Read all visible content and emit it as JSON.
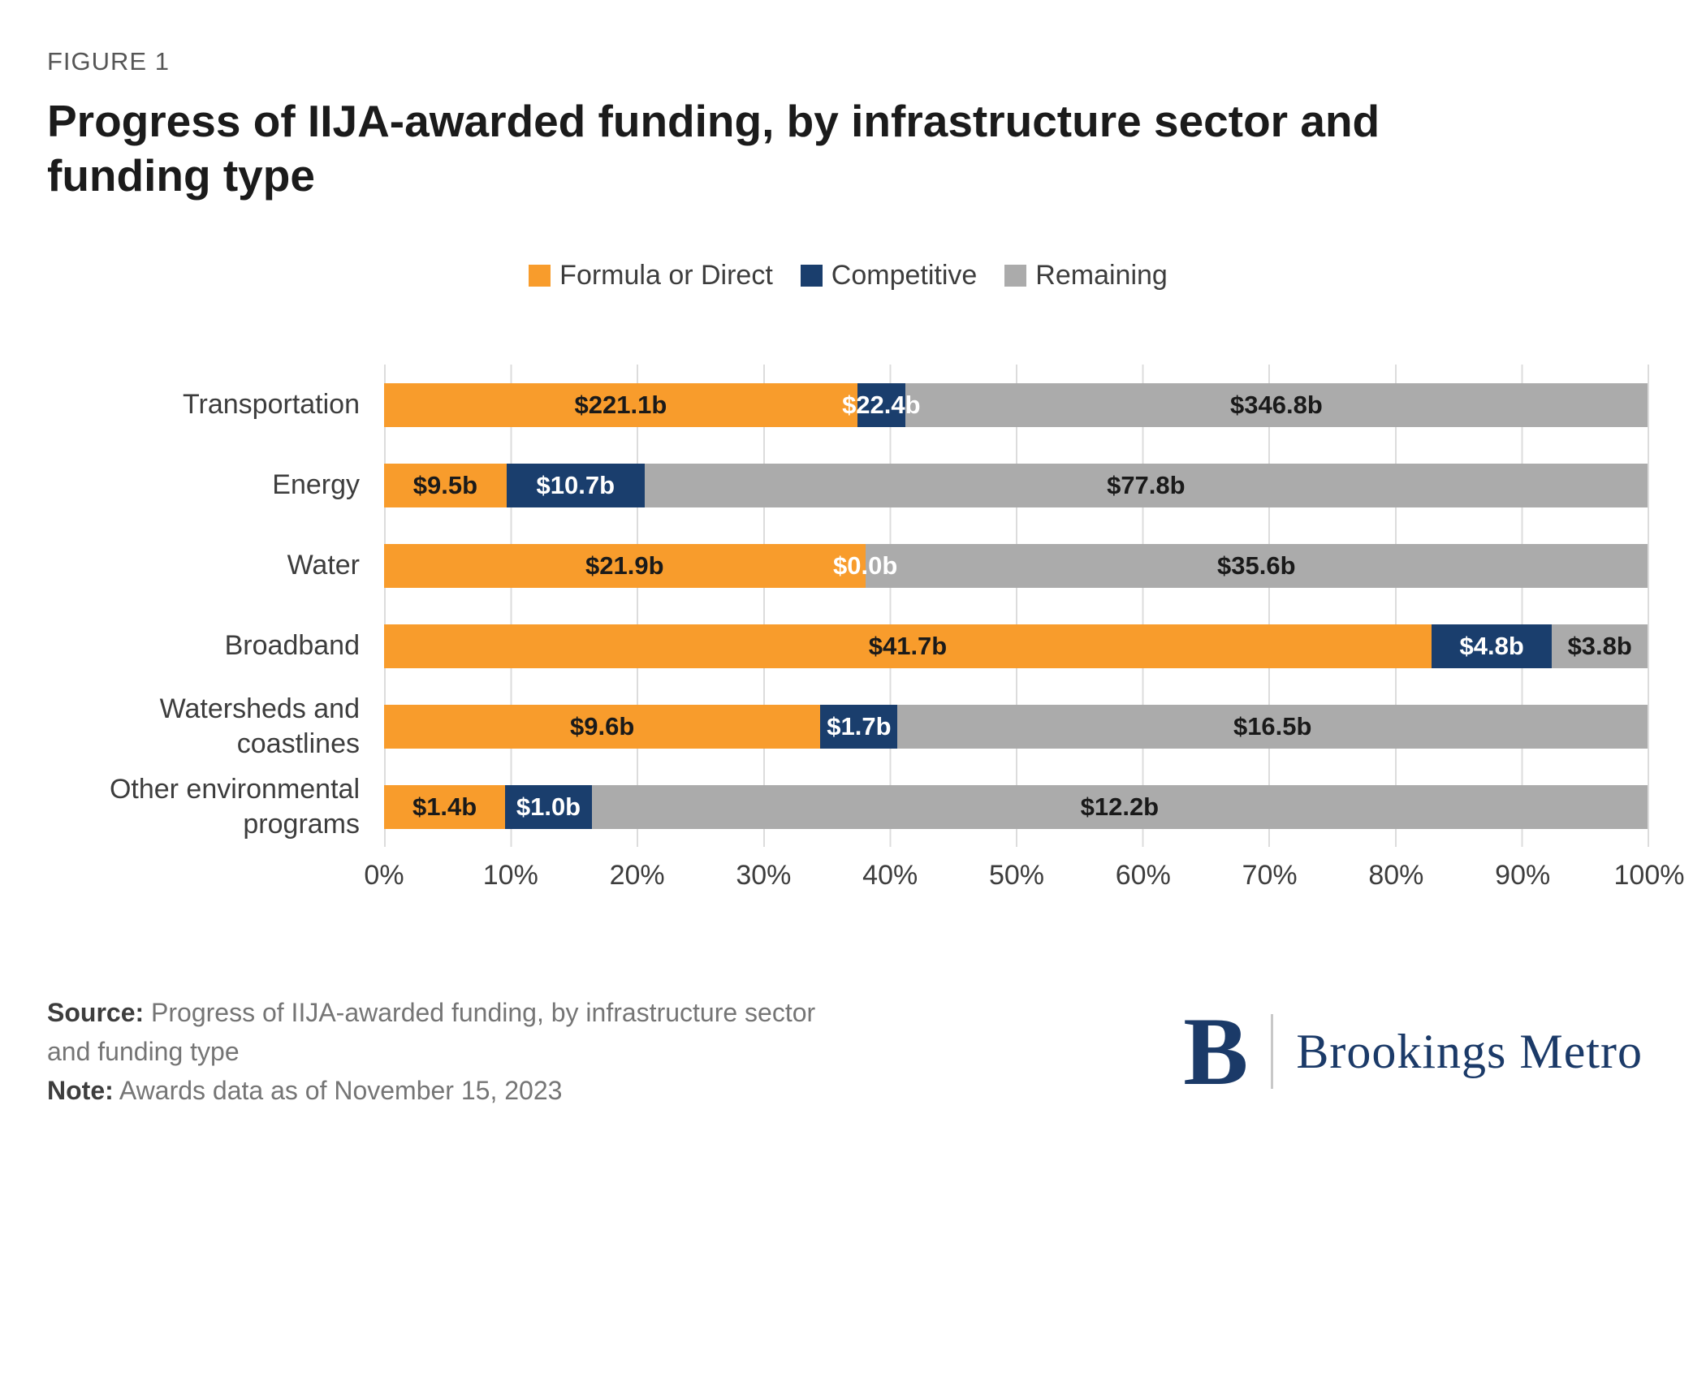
{
  "figure_label": "FIGURE 1",
  "title": "Progress of IIJA-awarded funding, by infrastructure sector and funding type",
  "legend": [
    {
      "label": "Formula or Direct",
      "color": "#F89C2C"
    },
    {
      "label": "Competitive",
      "color": "#1A3E6D"
    },
    {
      "label": "Remaining",
      "color": "#ABABAB"
    }
  ],
  "chart_data": {
    "type": "bar",
    "orientation": "horizontal",
    "stacked": true,
    "percent_scaled": true,
    "unit": "USD billions",
    "title": "Progress of IIJA-awarded funding, by infrastructure sector and funding type",
    "categories": [
      "Transportation",
      "Energy",
      "Water",
      "Broadband",
      "Watersheds and coastlines",
      "Other environmental programs"
    ],
    "series": [
      {
        "name": "Formula or Direct",
        "color": "#F89C2C",
        "label_color": "#1a1a1a",
        "values": [
          221.1,
          9.5,
          21.9,
          41.7,
          9.6,
          1.4
        ],
        "labels": [
          "$221.1b",
          "$9.5b",
          "$21.9b",
          "$41.7b",
          "$9.6b",
          "$1.4b"
        ]
      },
      {
        "name": "Competitive",
        "color": "#1A3E6D",
        "label_color": "#ffffff",
        "values": [
          22.4,
          10.7,
          0.0,
          4.8,
          1.7,
          1.0
        ],
        "labels": [
          "$22.4b",
          "$10.7b",
          "$0.0b",
          "$4.8b",
          "$1.7b",
          "$1.0b"
        ]
      },
      {
        "name": "Remaining",
        "color": "#ABABAB",
        "label_color": "#1a1a1a",
        "values": [
          346.8,
          77.8,
          35.6,
          3.8,
          16.5,
          12.2
        ],
        "labels": [
          "$346.8b",
          "$77.8b",
          "$35.6b",
          "$3.8b",
          "$16.5b",
          "$12.2b"
        ]
      }
    ],
    "x_axis": {
      "min": 0,
      "max": 100,
      "tick_labels": [
        "0%",
        "10%",
        "20%",
        "30%",
        "40%",
        "50%",
        "60%",
        "70%",
        "80%",
        "90%",
        "100%"
      ]
    },
    "grid": true,
    "legend_position": "top"
  },
  "footer": {
    "source_label": "Source:",
    "source_text": " Progress of IIJA-awarded funding, by infrastructure sector and funding type",
    "note_label": "Note:",
    "note_text": " Awards data as of November 15, 2023"
  },
  "logo": {
    "mark": "B",
    "text": "Brookings Metro"
  }
}
